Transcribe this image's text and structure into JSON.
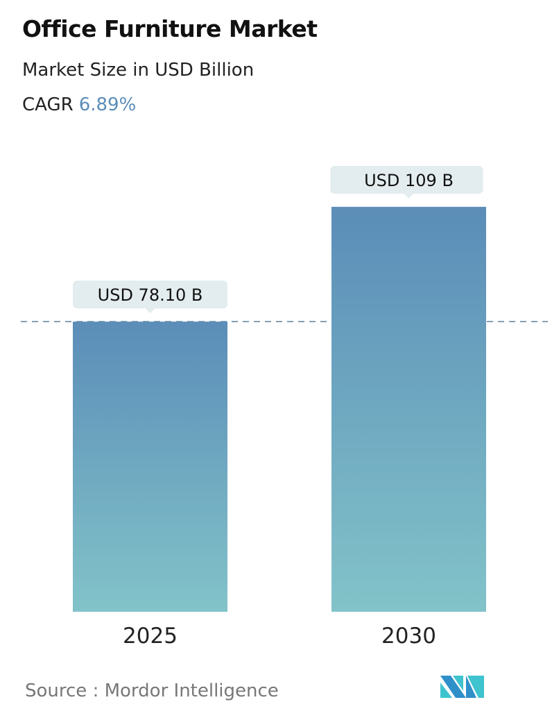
{
  "title": "Office Furniture Market",
  "subtitle": "Market Size in USD Billion",
  "cagr_label": "CAGR",
  "cagr_value": "6.89%",
  "source": "Source :  Mordor Intelligence",
  "logo_text": "Mordor Intelligence",
  "colors": {
    "bar_top": "#5b8db8",
    "bar_bottom": "#82c3c9",
    "cagr": "#5b8db8",
    "callout": "#e3ecee",
    "dashed_line": "#5b7f9a"
  },
  "chart_data": {
    "type": "bar",
    "categories": [
      "2025",
      "2030"
    ],
    "values": [
      78.1,
      109
    ],
    "data_labels": [
      "USD 78.10 B",
      "USD 109 B"
    ],
    "ylabel": "Market Size in USD Billion",
    "grid": false,
    "reference_line": 78.1
  }
}
